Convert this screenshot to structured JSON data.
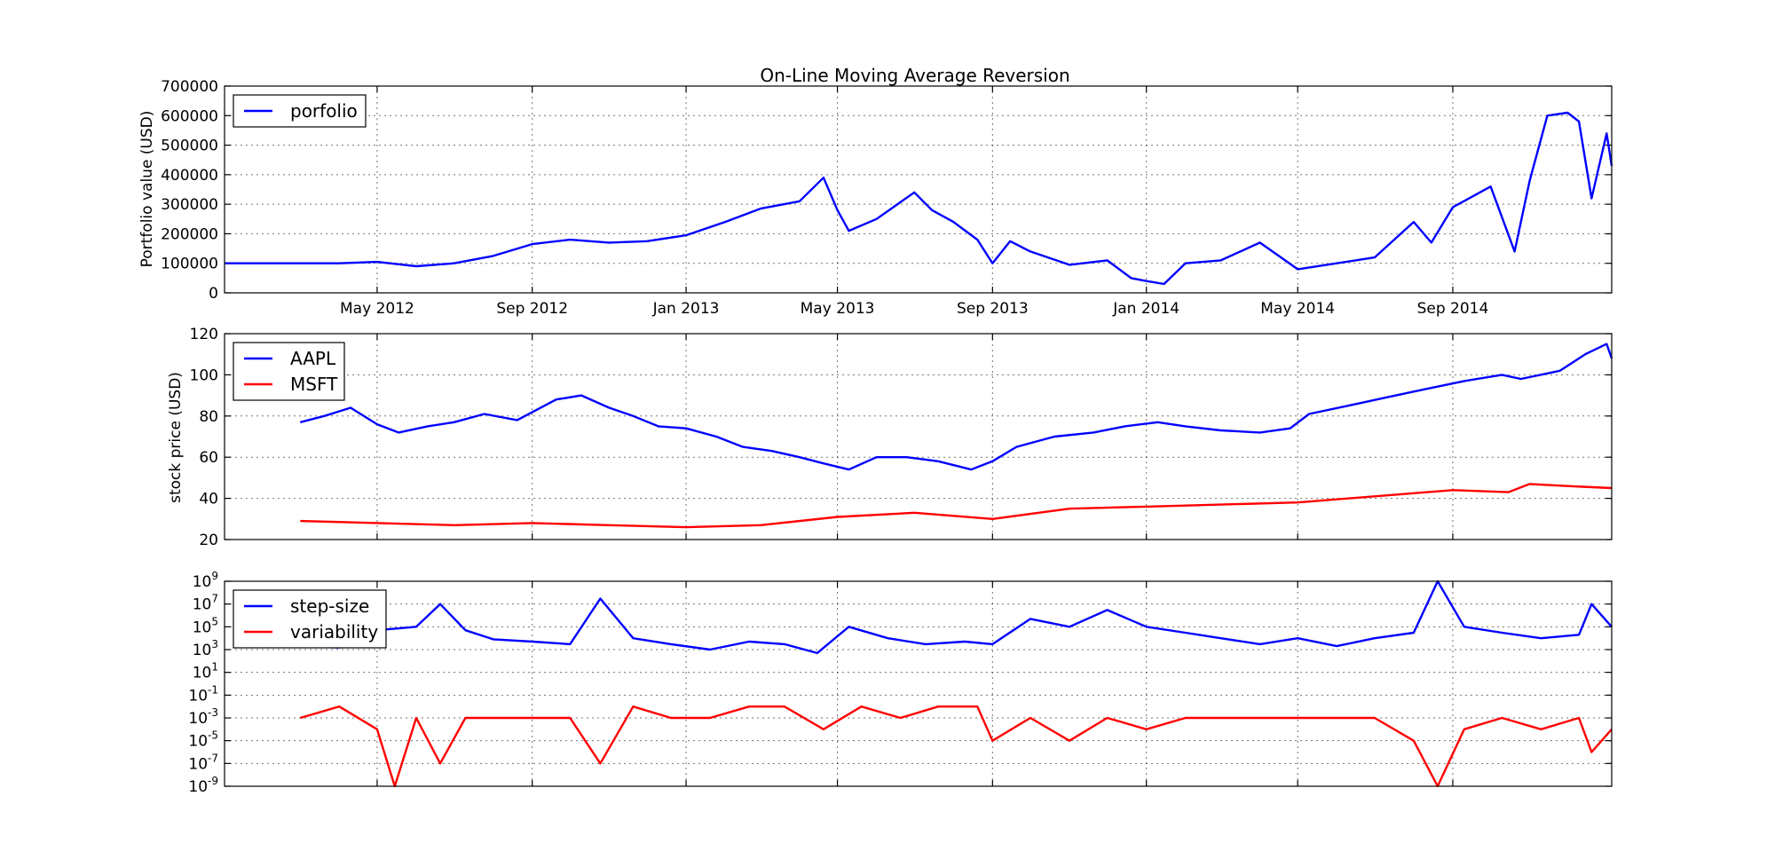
{
  "chart_data": [
    {
      "type": "line",
      "title": "On-Line Moving Average Reversion",
      "ylabel": "Portfolio value (USD)",
      "xlabel": "",
      "ylim": [
        0,
        700000
      ],
      "yticks": [
        "0",
        "100000",
        "200000",
        "300000",
        "400000",
        "500000",
        "600000",
        "700000"
      ],
      "xlim": [
        "2012-01-01",
        "2015-01-05"
      ],
      "xticks": [
        "May 2012",
        "Sep 2012",
        "Jan 2013",
        "May 2013",
        "Sep 2013",
        "Jan 2014",
        "May 2014",
        "Sep 2014"
      ],
      "grid": true,
      "legend": "top-left",
      "series": [
        {
          "name": "porfolio",
          "color": "#0000ff",
          "x": [
            "2012-01-01",
            "2012-02-01",
            "2012-03-01",
            "2012-04-01",
            "2012-05-01",
            "2012-06-01",
            "2012-07-01",
            "2012-08-01",
            "2012-09-01",
            "2012-10-01",
            "2012-11-01",
            "2012-12-01",
            "2013-01-01",
            "2013-02-01",
            "2013-03-01",
            "2013-04-01",
            "2013-04-20",
            "2013-05-01",
            "2013-05-10",
            "2013-06-01",
            "2013-07-01",
            "2013-07-15",
            "2013-08-01",
            "2013-08-20",
            "2013-09-01",
            "2013-09-15",
            "2013-10-01",
            "2013-11-01",
            "2013-12-01",
            "2013-12-20",
            "2014-01-01",
            "2014-01-15",
            "2014-02-01",
            "2014-03-01",
            "2014-04-01",
            "2014-05-01",
            "2014-06-01",
            "2014-07-01",
            "2014-08-01",
            "2014-08-15",
            "2014-09-01",
            "2014-10-01",
            "2014-10-20",
            "2014-11-01",
            "2014-11-15",
            "2014-12-01",
            "2014-12-10",
            "2014-12-20",
            "2015-01-01",
            "2015-01-05"
          ],
          "values": [
            100000,
            100000,
            100000,
            100000,
            105000,
            90000,
            100000,
            125000,
            165000,
            180000,
            170000,
            175000,
            195000,
            240000,
            285000,
            310000,
            390000,
            280000,
            210000,
            250000,
            340000,
            280000,
            240000,
            180000,
            100000,
            175000,
            140000,
            95000,
            110000,
            50000,
            40000,
            30000,
            100000,
            110000,
            170000,
            80000,
            100000,
            120000,
            240000,
            170000,
            290000,
            360000,
            140000,
            380000,
            600000,
            610000,
            580000,
            320000,
            540000,
            430000
          ]
        }
      ]
    },
    {
      "type": "line",
      "title": "",
      "ylabel": "stock price (USD)",
      "xlabel": "",
      "ylim": [
        20,
        120
      ],
      "yticks": [
        "20",
        "40",
        "60",
        "80",
        "100",
        "120"
      ],
      "xlim": [
        "2012-01-01",
        "2015-01-05"
      ],
      "grid": true,
      "legend": "top-left",
      "series": [
        {
          "name": "AAPL",
          "color": "#0000ff",
          "x": [
            "2012-03-01",
            "2012-03-20",
            "2012-04-10",
            "2012-05-01",
            "2012-05-18",
            "2012-06-10",
            "2012-07-01",
            "2012-07-25",
            "2012-08-20",
            "2012-09-20",
            "2012-10-10",
            "2012-11-01",
            "2012-11-20",
            "2012-12-10",
            "2013-01-01",
            "2013-01-25",
            "2013-02-15",
            "2013-03-10",
            "2013-04-01",
            "2013-04-20",
            "2013-05-10",
            "2013-06-01",
            "2013-06-25",
            "2013-07-20",
            "2013-08-15",
            "2013-09-01",
            "2013-09-20",
            "2013-10-20",
            "2013-11-20",
            "2013-12-15",
            "2014-01-10",
            "2014-02-01",
            "2014-03-01",
            "2014-04-01",
            "2014-04-25",
            "2014-05-10",
            "2014-06-10",
            "2014-07-10",
            "2014-08-10",
            "2014-09-10",
            "2014-10-10",
            "2014-10-25",
            "2014-11-25",
            "2014-12-15",
            "2015-01-01",
            "2015-01-05"
          ],
          "values": [
            77,
            80,
            84,
            76,
            72,
            75,
            77,
            81,
            78,
            88,
            90,
            84,
            80,
            75,
            74,
            70,
            65,
            63,
            60,
            57,
            54,
            60,
            60,
            58,
            54,
            58,
            65,
            70,
            72,
            75,
            77,
            75,
            73,
            72,
            74,
            81,
            85,
            89,
            93,
            97,
            100,
            98,
            102,
            110,
            115,
            108
          ]
        },
        {
          "name": "MSFT",
          "color": "#ff0000",
          "x": [
            "2012-03-01",
            "2012-05-01",
            "2012-07-01",
            "2012-09-01",
            "2012-11-01",
            "2013-01-01",
            "2013-03-01",
            "2013-05-01",
            "2013-07-01",
            "2013-09-01",
            "2013-11-01",
            "2014-01-01",
            "2014-03-01",
            "2014-05-01",
            "2014-07-01",
            "2014-09-01",
            "2014-10-15",
            "2014-11-01",
            "2014-12-01",
            "2015-01-05"
          ],
          "values": [
            29,
            28,
            27,
            28,
            27,
            26,
            27,
            31,
            33,
            30,
            35,
            36,
            37,
            38,
            41,
            44,
            43,
            47,
            46,
            45
          ]
        }
      ]
    },
    {
      "type": "line",
      "title": "",
      "ylabel": "",
      "xlabel": "",
      "yscale": "log",
      "ylim": [
        "1e-9",
        "1e9"
      ],
      "yticks": [
        "10^-9",
        "10^-7",
        "10^-5",
        "10^-3",
        "10^-1",
        "10^1",
        "10^3",
        "10^5",
        "10^7",
        "10^9"
      ],
      "xlim": [
        "2012-01-01",
        "2015-01-05"
      ],
      "grid": true,
      "legend": "top-left",
      "series": [
        {
          "name": "step-size",
          "color": "#0000ff",
          "x": [
            "2012-03-01",
            "2012-04-01",
            "2012-05-01",
            "2012-06-01",
            "2012-06-20",
            "2012-07-10",
            "2012-08-01",
            "2012-09-01",
            "2012-10-01",
            "2012-10-25",
            "2012-11-20",
            "2012-12-20",
            "2013-01-20",
            "2013-02-20",
            "2013-03-20",
            "2013-04-15",
            "2013-05-10",
            "2013-06-10",
            "2013-07-10",
            "2013-08-10",
            "2013-09-01",
            "2013-10-01",
            "2013-11-01",
            "2013-12-01",
            "2014-01-01",
            "2014-02-01",
            "2014-03-01",
            "2014-04-01",
            "2014-05-01",
            "2014-06-01",
            "2014-07-01",
            "2014-08-01",
            "2014-08-20",
            "2014-09-10",
            "2014-10-10",
            "2014-11-10",
            "2014-12-10",
            "2014-12-20",
            "2015-01-05"
          ],
          "values": [
            2000,
            1500,
            50000,
            100000,
            10000000,
            50000,
            8000,
            5000,
            3000,
            30000000,
            10000,
            3000,
            1000,
            5000,
            3000,
            500,
            100000,
            10000,
            3000,
            5000,
            3000,
            500000,
            100000,
            3000000,
            100000,
            30000,
            10000,
            3000,
            10000,
            2000,
            10000,
            30000,
            1000000000,
            100000,
            30000,
            10000,
            20000,
            10000000,
            100000
          ]
        },
        {
          "name": "variability",
          "color": "#ff0000",
          "x": [
            "2012-03-01",
            "2012-04-01",
            "2012-05-01",
            "2012-05-15",
            "2012-06-01",
            "2012-06-20",
            "2012-07-10",
            "2012-08-01",
            "2012-09-01",
            "2012-10-01",
            "2012-10-25",
            "2012-11-20",
            "2012-12-20",
            "2013-01-20",
            "2013-02-20",
            "2013-03-20",
            "2013-04-20",
            "2013-05-20",
            "2013-06-20",
            "2013-07-20",
            "2013-08-20",
            "2013-09-01",
            "2013-10-01",
            "2013-11-01",
            "2013-12-01",
            "2014-01-01",
            "2014-02-01",
            "2014-03-01",
            "2014-04-01",
            "2014-05-01",
            "2014-06-01",
            "2014-07-01",
            "2014-08-01",
            "2014-08-20",
            "2014-09-10",
            "2014-10-10",
            "2014-11-10",
            "2014-12-10",
            "2014-12-20",
            "2015-01-05"
          ],
          "values": [
            0.001,
            0.01,
            0.0001,
            1e-09,
            0.001,
            1e-07,
            0.001,
            0.001,
            0.001,
            0.001,
            1e-07,
            0.01,
            0.001,
            0.001,
            0.01,
            0.01,
            0.0001,
            0.01,
            0.001,
            0.01,
            0.01,
            1e-05,
            0.001,
            1e-05,
            0.001,
            0.0001,
            0.001,
            0.001,
            0.001,
            0.001,
            0.001,
            0.001,
            1e-05,
            1e-09,
            0.0001,
            0.001,
            0.0001,
            0.001,
            1e-06,
            0.0001
          ]
        }
      ]
    }
  ]
}
